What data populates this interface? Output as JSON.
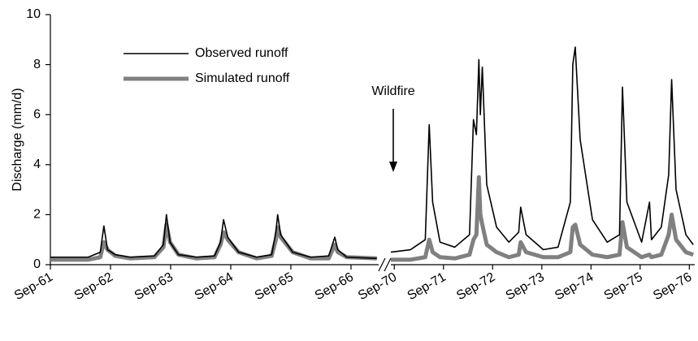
{
  "chart_data": [
    {
      "type": "line",
      "y_label": "Discharge (mm/d)",
      "x": [
        1961.67,
        1962.3,
        1962.5,
        1962.56,
        1962.62,
        1962.75,
        1963.0,
        1963.4,
        1963.55,
        1963.6,
        1963.66,
        1963.8,
        1964.1,
        1964.4,
        1964.5,
        1964.55,
        1964.62,
        1964.8,
        1965.1,
        1965.35,
        1965.42,
        1965.45,
        1965.5,
        1965.7,
        1966.0,
        1966.3,
        1966.4,
        1966.45,
        1966.6,
        1967.1
      ],
      "series": [
        {
          "name": "Observed runoff",
          "color": "#000000",
          "line_width": 1.6,
          "values": [
            0.3,
            0.3,
            0.5,
            1.55,
            0.6,
            0.4,
            0.3,
            0.35,
            0.8,
            2.0,
            0.9,
            0.4,
            0.3,
            0.35,
            0.9,
            1.8,
            1.1,
            0.5,
            0.3,
            0.4,
            1.3,
            2.0,
            1.2,
            0.5,
            0.3,
            0.35,
            1.1,
            0.6,
            0.3,
            0.25
          ]
        },
        {
          "name": "Simulated runoff",
          "color": "#808080",
          "line_width": 5,
          "values": [
            0.2,
            0.2,
            0.3,
            0.9,
            0.6,
            0.35,
            0.25,
            0.3,
            0.7,
            1.6,
            0.9,
            0.4,
            0.25,
            0.3,
            0.8,
            1.3,
            1.0,
            0.5,
            0.25,
            0.35,
            1.0,
            1.5,
            1.1,
            0.5,
            0.25,
            0.25,
            0.8,
            0.5,
            0.3,
            0.25
          ]
        }
      ],
      "xlim": [
        1961.67,
        1967.13
      ],
      "xticks": [
        {
          "value": 1961.67,
          "label": "Sep-61"
        },
        {
          "value": 1962.67,
          "label": "Sep-62"
        },
        {
          "value": 1963.67,
          "label": "Sep-63"
        },
        {
          "value": 1964.67,
          "label": "Sep-64"
        },
        {
          "value": 1965.67,
          "label": "Sep-65"
        },
        {
          "value": 1966.67,
          "label": "Sep-66"
        }
      ],
      "ylim": [
        0,
        10
      ],
      "yticks": [
        0,
        2,
        4,
        6,
        8,
        10
      ]
    },
    {
      "type": "line",
      "annotation": "Wildfire",
      "x": [
        1970.6,
        1971.0,
        1971.3,
        1971.38,
        1971.45,
        1971.6,
        1971.9,
        1972.2,
        1972.28,
        1972.34,
        1972.39,
        1972.42,
        1972.46,
        1972.55,
        1972.75,
        1973.0,
        1973.2,
        1973.24,
        1973.35,
        1973.7,
        1974.0,
        1974.25,
        1974.3,
        1974.35,
        1974.45,
        1974.7,
        1975.0,
        1975.25,
        1975.31,
        1975.4,
        1975.7,
        1975.86,
        1975.9,
        1976.1,
        1976.25,
        1976.31,
        1976.4,
        1976.6,
        1976.75
      ],
      "series": [
        {
          "color": "#000000",
          "line_width": 1.6,
          "values": [
            0.5,
            0.6,
            1.0,
            5.6,
            2.5,
            0.9,
            0.7,
            1.2,
            5.8,
            5.2,
            8.2,
            6.0,
            7.9,
            3.2,
            1.5,
            0.9,
            1.3,
            2.3,
            1.2,
            0.6,
            0.7,
            2.5,
            8.0,
            8.7,
            5.0,
            1.8,
            0.9,
            1.2,
            7.1,
            2.5,
            0.9,
            2.5,
            1.0,
            1.5,
            3.6,
            7.4,
            3.0,
            1.2,
            0.8
          ]
        },
        {
          "color": "#808080",
          "line_width": 5,
          "values": [
            0.2,
            0.2,
            0.3,
            1.0,
            0.5,
            0.3,
            0.25,
            0.4,
            1.0,
            1.2,
            3.5,
            2.0,
            1.6,
            0.8,
            0.5,
            0.3,
            0.4,
            0.9,
            0.5,
            0.3,
            0.3,
            0.5,
            1.5,
            1.6,
            0.8,
            0.4,
            0.3,
            0.4,
            1.7,
            0.7,
            0.3,
            0.4,
            0.3,
            0.4,
            1.2,
            2.0,
            1.0,
            0.5,
            0.4
          ]
        }
      ],
      "xlim": [
        1970.6,
        1976.78
      ],
      "xticks": [
        {
          "value": 1970.67,
          "label": "Sep-70"
        },
        {
          "value": 1971.67,
          "label": "Sep-71"
        },
        {
          "value": 1972.67,
          "label": "Sep-72"
        },
        {
          "value": 1973.67,
          "label": "Sep-73"
        },
        {
          "value": 1974.67,
          "label": "Sep-74"
        },
        {
          "value": 1975.67,
          "label": "Sep-75"
        },
        {
          "value": 1976.67,
          "label": "Sep-76"
        }
      ],
      "ylim": [
        0,
        10
      ]
    }
  ]
}
